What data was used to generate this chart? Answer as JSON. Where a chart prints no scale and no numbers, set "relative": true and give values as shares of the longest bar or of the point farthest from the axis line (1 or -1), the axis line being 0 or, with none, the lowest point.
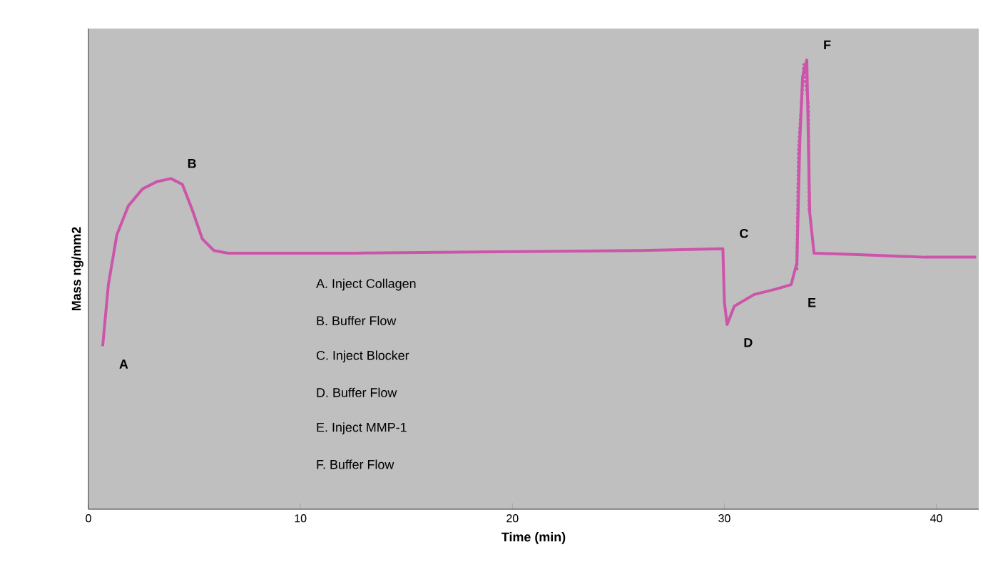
{
  "chart_data": {
    "type": "line",
    "relative": true,
    "xlabel": "Time (min)",
    "ylabel": "Mass ng/mm2",
    "xlim": [
      0,
      42
    ],
    "xticks": [
      0,
      10,
      20,
      30,
      40
    ],
    "series": [
      {
        "color": "#cc55aa",
        "line_style": "solid",
        "x": [
          0.67,
          0.94,
          1.34,
          1.88,
          2.55,
          3.22,
          3.89,
          4.43,
          4.9,
          5.37,
          5.91,
          6.58,
          12.62,
          19.33,
          26.04,
          29.93,
          30.0,
          30.13,
          30.47,
          31.41,
          32.42,
          33.15,
          33.42,
          33.56,
          33.69,
          33.89,
          34.03,
          34.23,
          36.11,
          39.46,
          41.88
        ],
        "values": [
          0.363,
          0.5,
          0.611,
          0.675,
          0.713,
          0.729,
          0.736,
          0.723,
          0.666,
          0.602,
          0.576,
          0.57,
          0.57,
          0.573,
          0.576,
          0.58,
          0.462,
          0.411,
          0.452,
          0.478,
          0.49,
          0.5,
          0.548,
          0.818,
          0.962,
          1.0,
          0.659,
          0.57,
          0.567,
          0.561,
          0.561
        ]
      },
      {
        "color": "#cc55aa",
        "line_style": "dotted",
        "x": [
          33.42,
          33.5,
          33.75,
          33.96,
          34.0
        ],
        "values": [
          0.532,
          0.8,
          0.99,
          0.9,
          0.66
        ]
      }
    ],
    "annotations": [
      {
        "text": "A",
        "x": 0.67,
        "y": 0.363
      },
      {
        "text": "B",
        "x": 3.89,
        "y": 0.736
      },
      {
        "text": "C",
        "x": 29.93,
        "y": 0.58
      },
      {
        "text": "D",
        "x": 30.13,
        "y": 0.411
      },
      {
        "text": "E",
        "x": 33.15,
        "y": 0.5
      },
      {
        "text": "F",
        "x": 33.89,
        "y": 1.0
      },
      "A.   Inject Collagen",
      "B.   Buffer Flow",
      "C.   Inject Blocker",
      "D.   Buffer Flow",
      "E.   Inject MMP-1",
      "F.   Buffer Flow"
    ]
  }
}
